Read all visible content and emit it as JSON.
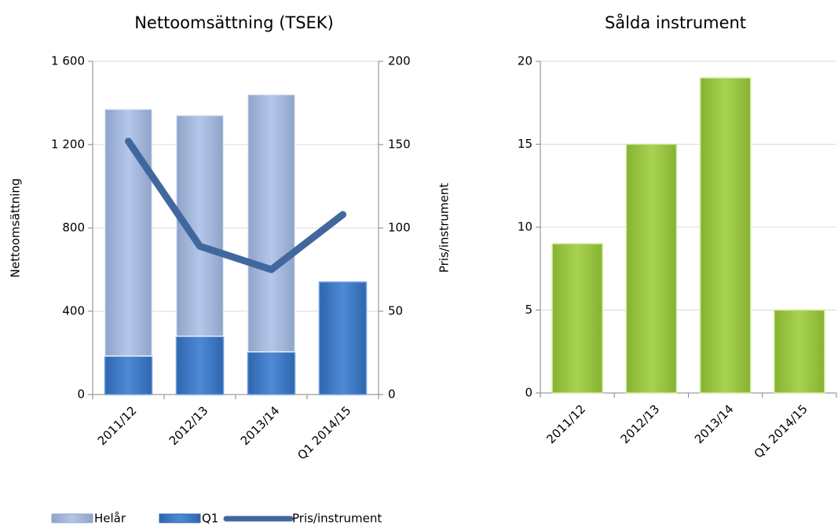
{
  "chart_data": [
    {
      "type": "bar",
      "title": "Nettoomsättning (TSEK)",
      "y_label": "Nettoomsättning",
      "y2_label": "Pris/instrument",
      "categories": [
        "2011/12",
        "2012/13",
        "2013/14",
        "Q1 2014/15"
      ],
      "series": [
        {
          "name": "Helår",
          "color": "#a9bfe3",
          "stacked": true,
          "values": [
            1185,
            1060,
            1235,
            null
          ]
        },
        {
          "name": "Q1",
          "color": "#3f7dcb",
          "stacked": true,
          "values": [
            185,
            280,
            205,
            540
          ]
        },
        {
          "name": "Pris/instrument",
          "color": "#41689e",
          "type": "line",
          "axis": "y2",
          "values": [
            152,
            89,
            75,
            108
          ]
        }
      ],
      "ylim": [
        0,
        1600
      ],
      "yticks": [
        0,
        400,
        800,
        {
          "value": 1200,
          "label": "1 200"
        },
        {
          "value": 1600,
          "label": "1 600"
        }
      ],
      "y2lim": [
        0,
        200
      ],
      "y2ticks": [
        0,
        50,
        100,
        150,
        200
      ],
      "grid": true
    },
    {
      "type": "bar",
      "title": "Sålda instrument",
      "categories": [
        "2011/12",
        "2012/13",
        "2013/14",
        "Q1 2014/15"
      ],
      "series": [
        {
          "name": "Sålda instrument",
          "color": "#9cc845",
          "values": [
            9,
            15,
            19,
            5
          ]
        }
      ],
      "ylim": [
        0,
        20
      ],
      "yticks": [
        0,
        5,
        10,
        15,
        20
      ],
      "grid": true
    }
  ]
}
